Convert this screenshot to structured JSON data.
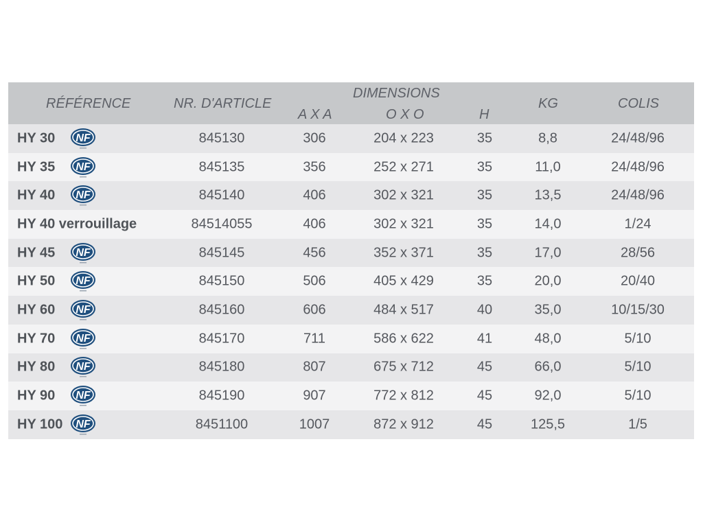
{
  "header": {
    "reference": "RÉFÉRENCE",
    "article": "NR. D'ARTICLE",
    "dimensions": "DIMENSIONS",
    "axa": "A X A",
    "oxo": "O X O",
    "h": "H",
    "kg": "KG",
    "colis": "COLIS"
  },
  "nf_logo_text": "NF",
  "rows": [
    {
      "ref": "HY 30",
      "nf": true,
      "article": "845130",
      "axa": "306",
      "oxo": "204 x 223",
      "h": "35",
      "kg": "8,8",
      "colis": "24/48/96"
    },
    {
      "ref": "HY 35",
      "nf": true,
      "article": "845135",
      "axa": "356",
      "oxo": "252 x 271",
      "h": "35",
      "kg": "11,0",
      "colis": "24/48/96"
    },
    {
      "ref": "HY 40",
      "nf": true,
      "article": "845140",
      "axa": "406",
      "oxo": "302 x 321",
      "h": "35",
      "kg": "13,5",
      "colis": "24/48/96"
    },
    {
      "ref": "HY 40 verrouillage",
      "nf": false,
      "article": "84514055",
      "axa": "406",
      "oxo": "302 x 321",
      "h": "35",
      "kg": "14,0",
      "colis": "1/24"
    },
    {
      "ref": "HY 45",
      "nf": true,
      "article": "845145",
      "axa": "456",
      "oxo": "352 x 371",
      "h": "35",
      "kg": "17,0",
      "colis": "28/56"
    },
    {
      "ref": "HY 50",
      "nf": true,
      "article": "845150",
      "axa": "506",
      "oxo": "405 x 429",
      "h": "35",
      "kg": "20,0",
      "colis": "20/40"
    },
    {
      "ref": "HY 60",
      "nf": true,
      "article": "845160",
      "axa": "606",
      "oxo": "484 x 517",
      "h": "40",
      "kg": "35,0",
      "colis": "10/15/30"
    },
    {
      "ref": "HY 70",
      "nf": true,
      "article": "845170",
      "axa": "711",
      "oxo": "586 x 622",
      "h": "41",
      "kg": "48,0",
      "colis": "5/10"
    },
    {
      "ref": "HY 80",
      "nf": true,
      "article": "845180",
      "axa": "807",
      "oxo": "675 x 712",
      "h": "45",
      "kg": "66,0",
      "colis": "5/10"
    },
    {
      "ref": "HY 90",
      "nf": true,
      "article": "845190",
      "axa": "907",
      "oxo": "772 x 812",
      "h": "45",
      "kg": "92,0",
      "colis": "5/10"
    },
    {
      "ref": "HY 100",
      "nf": true,
      "article": "8451100",
      "axa": "1007",
      "oxo": "872 x 912",
      "h": "45",
      "kg": "125,5",
      "colis": "1/5"
    }
  ],
  "colors": {
    "header_bg": "#c6c8ca",
    "row_odd_bg": "#e6e6e8",
    "row_even_bg": "#f3f3f4",
    "nf_logo": "#1f4f7e"
  }
}
